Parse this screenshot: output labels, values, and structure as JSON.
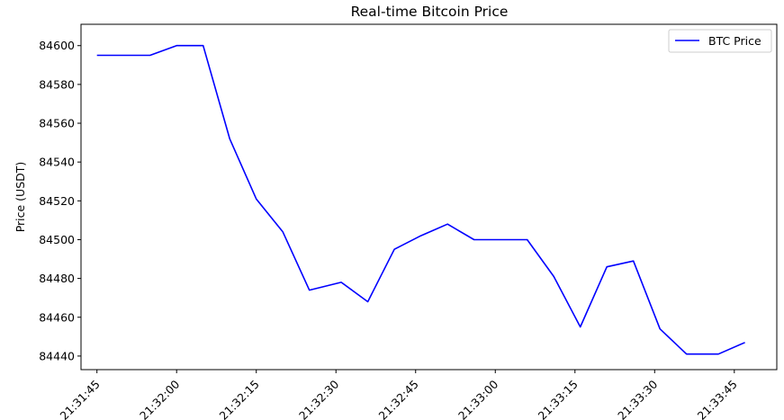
{
  "chart_data": {
    "type": "line",
    "title": "Real-time Bitcoin Price",
    "xlabel": "",
    "ylabel": "Price (USDT)",
    "x_tick_labels": [
      "21:31:45",
      "21:32:00",
      "21:32:15",
      "21:32:30",
      "21:32:45",
      "21:33:00",
      "21:33:15",
      "21:33:30",
      "21:33:45"
    ],
    "y_ticks": [
      84440,
      84460,
      84480,
      84500,
      84520,
      84540,
      84560,
      84580,
      84600
    ],
    "x_time_range": [
      "21:31:42",
      "21:33:53"
    ],
    "ylim": [
      84433,
      84611
    ],
    "grid": false,
    "legend_position": "top-right",
    "series": [
      {
        "name": "BTC Price",
        "color": "#0000ff",
        "x": [
          "21:31:45",
          "21:31:50",
          "21:31:55",
          "21:32:00",
          "21:32:05",
          "21:32:10",
          "21:32:15",
          "21:32:20",
          "21:32:25",
          "21:32:31",
          "21:32:36",
          "21:32:41",
          "21:32:46",
          "21:32:51",
          "21:32:56",
          "21:33:01",
          "21:33:06",
          "21:33:11",
          "21:33:16",
          "21:33:21",
          "21:33:26",
          "21:33:31",
          "21:33:36",
          "21:33:42",
          "21:33:47"
        ],
        "y": [
          84595,
          84595,
          84595,
          84600,
          84600,
          84552,
          84521,
          84504,
          84474,
          84478,
          84468,
          84495,
          84502,
          84508,
          84500,
          84500,
          84500,
          84481,
          84455,
          84486,
          84489,
          84454,
          84441,
          84441,
          84447
        ]
      }
    ]
  }
}
